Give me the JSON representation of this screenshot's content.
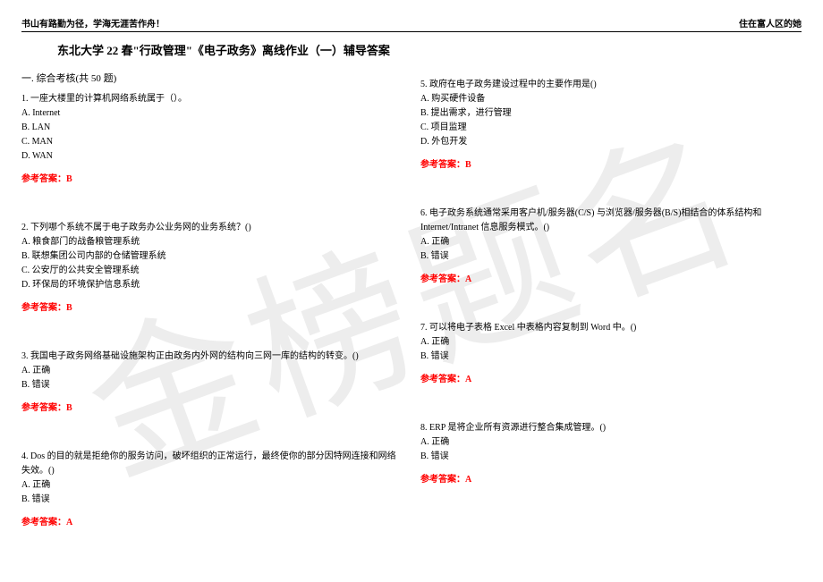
{
  "header": {
    "left": "书山有路勤为径，学海无涯苦作舟！",
    "right": "住在富人区的她"
  },
  "title": "东北大学 22 春\"行政管理\"《电子政务》离线作业（一）辅导答案",
  "section": "一. 综合考核(共 50 题)",
  "watermark": "金榜题名",
  "answer_label": "参考答案：",
  "colors": {
    "text": "#000000",
    "answer": "#ff0000",
    "watermark": "rgba(0,0,0,0.07)",
    "background": "#ffffff"
  },
  "left_questions": [
    {
      "text": "1. 一座大楼里的计算机网络系统属于（）。",
      "options": [
        "A. Internet",
        "B. LAN",
        "C. MAN",
        "D. WAN"
      ],
      "answer": "B"
    },
    {
      "text": "2. 下列哪个系统不属于电子政务办公业务网的业务系统？()",
      "options": [
        "A. 粮食部门的战备粮管理系统",
        "B. 联想集团公司内部的仓储管理系统",
        "C. 公安厅的公共安全管理系统",
        "D. 环保局的环境保护信息系统"
      ],
      "answer": "B"
    },
    {
      "text": "3. 我国电子政务网络基础设施架构正由政务内外网的结构向三网一库的结构的转变。()",
      "options": [
        "A. 正确",
        "B. 错误"
      ],
      "answer": "B"
    },
    {
      "text": "4. Dos 的目的就是拒绝你的服务访问，破坏组织的正常运行，最终使你的部分因特网连接和网络失效。()",
      "options": [
        "A. 正确",
        "B. 错误"
      ],
      "answer": "A"
    }
  ],
  "right_questions": [
    {
      "text": "5. 政府在电子政务建设过程中的主要作用是()",
      "options": [
        "A. 购买硬件设备",
        "B. 提出需求，进行管理",
        "C. 项目监理",
        "D. 外包开发"
      ],
      "answer": "B"
    },
    {
      "text": "6. 电子政务系统通常采用客户机/服务器(C/S) 与浏览器/服务器(B/S)相结合的体系结构和Internet/Intranet 信息服务模式。()",
      "options": [
        "A. 正确",
        "B. 错误"
      ],
      "answer": "A"
    },
    {
      "text": "7. 可以将电子表格 Excel 中表格内容复制到 Word 中。()",
      "options": [
        "A. 正确",
        "B. 错误"
      ],
      "answer": "A"
    },
    {
      "text": "8. ERP 是将企业所有资源进行整合集成管理。()",
      "options": [
        "A. 正确",
        "B. 错误"
      ],
      "answer": "A"
    }
  ]
}
